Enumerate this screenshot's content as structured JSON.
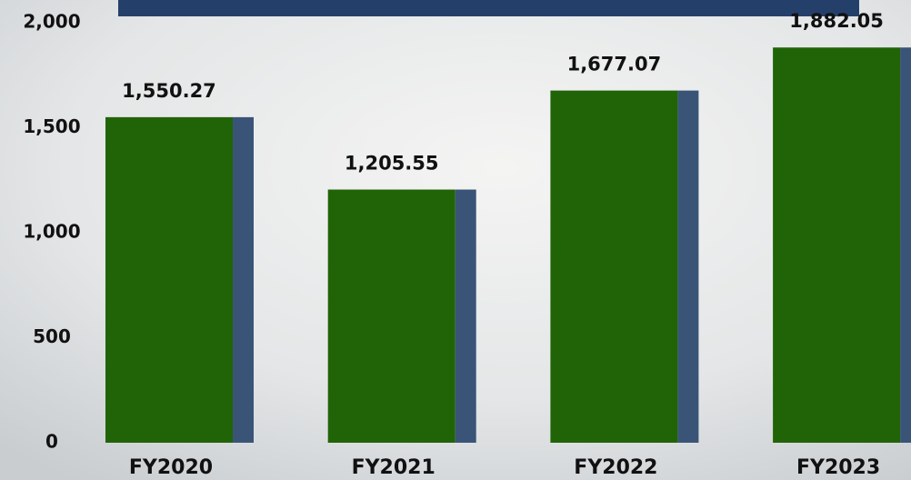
{
  "chart_data": {
    "type": "bar",
    "categories": [
      "FY2020",
      "FY2021",
      "FY2022",
      "FY2023"
    ],
    "values": [
      1550.27,
      1205.55,
      1677.07,
      1882.05
    ],
    "value_labels": [
      "1,550.27",
      "1,205.55",
      "1,677.07",
      "1,882.05"
    ],
    "color": "#216407",
    "shadow_color": "#3a5478",
    "ylim": [
      0,
      2000
    ],
    "yticks": [
      0,
      500,
      {
        "value": 1000,
        "label": "1,000"
      },
      {
        "value": 1500,
        "label": "1,500"
      },
      {
        "value": 2000,
        "label": "2,000"
      }
    ],
    "grid": false
  }
}
